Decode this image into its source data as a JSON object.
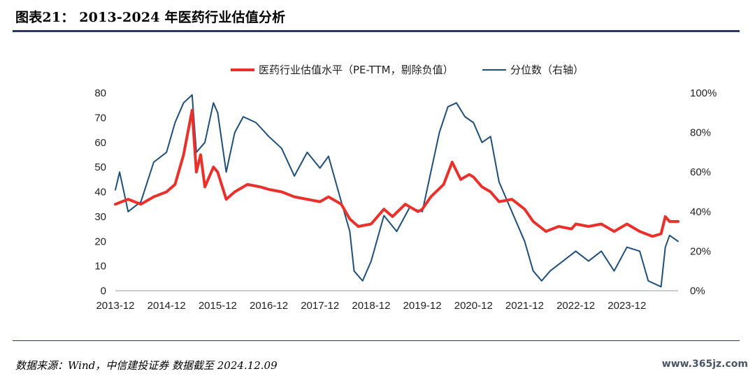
{
  "header": {
    "title": "图表21： 2013-2024 年医药行业估值分析"
  },
  "footer": {
    "source": "数据来源：Wind，中信建投证券  数据截至 2024.12.09",
    "watermark": "www.365jz.com"
  },
  "chart_data": {
    "type": "line",
    "title": "",
    "x_labels": [
      "2013-12",
      "2014-12",
      "2015-12",
      "2016-12",
      "2017-12",
      "2018-12",
      "2019-12",
      "2020-12",
      "2021-12",
      "2022-12",
      "2023-12"
    ],
    "x_range": [
      "2013-12",
      "2024-12"
    ],
    "y_left": {
      "min": 0,
      "max": 80,
      "ticks": [
        "0",
        "10",
        "20",
        "30",
        "40",
        "50",
        "60",
        "70",
        "80"
      ]
    },
    "y_right": {
      "min": 0,
      "max": 1,
      "ticks": [
        "0%",
        "20%",
        "40%",
        "60%",
        "80%",
        "100%"
      ]
    },
    "legend_position": "top",
    "series": [
      {
        "name": "医药行业估值水平（PE-TTM，剔除负值）",
        "axis": "left",
        "color": "#e8312a",
        "points": [
          [
            "2013-12",
            35
          ],
          [
            "2014-03",
            37
          ],
          [
            "2014-06",
            35
          ],
          [
            "2014-09",
            38
          ],
          [
            "2014-12",
            40
          ],
          [
            "2015-02",
            43
          ],
          [
            "2015-04",
            55
          ],
          [
            "2015-06",
            73
          ],
          [
            "2015-07",
            48
          ],
          [
            "2015-08",
            55
          ],
          [
            "2015-09",
            42
          ],
          [
            "2015-11",
            50
          ],
          [
            "2015-12",
            48
          ],
          [
            "2016-02",
            37
          ],
          [
            "2016-04",
            40
          ],
          [
            "2016-07",
            43
          ],
          [
            "2016-10",
            42
          ],
          [
            "2016-12",
            41
          ],
          [
            "2017-03",
            40
          ],
          [
            "2017-06",
            38
          ],
          [
            "2017-09",
            37
          ],
          [
            "2017-12",
            36
          ],
          [
            "2018-02",
            38
          ],
          [
            "2018-05",
            35
          ],
          [
            "2018-07",
            29
          ],
          [
            "2018-09",
            26
          ],
          [
            "2018-12",
            27
          ],
          [
            "2019-03",
            33
          ],
          [
            "2019-05",
            30
          ],
          [
            "2019-08",
            35
          ],
          [
            "2019-11",
            32
          ],
          [
            "2019-12",
            33
          ],
          [
            "2020-02",
            38
          ],
          [
            "2020-05",
            43
          ],
          [
            "2020-07",
            52
          ],
          [
            "2020-09",
            45
          ],
          [
            "2020-11",
            47
          ],
          [
            "2020-12",
            46
          ],
          [
            "2021-02",
            42
          ],
          [
            "2021-04",
            40
          ],
          [
            "2021-06",
            36
          ],
          [
            "2021-09",
            37
          ],
          [
            "2021-12",
            33
          ],
          [
            "2022-02",
            28
          ],
          [
            "2022-05",
            24
          ],
          [
            "2022-08",
            26
          ],
          [
            "2022-11",
            25
          ],
          [
            "2022-12",
            27
          ],
          [
            "2023-03",
            26
          ],
          [
            "2023-06",
            27
          ],
          [
            "2023-09",
            24
          ],
          [
            "2023-12",
            27
          ],
          [
            "2024-03",
            24
          ],
          [
            "2024-06",
            22
          ],
          [
            "2024-08",
            23
          ],
          [
            "2024-09",
            30
          ],
          [
            "2024-10",
            28
          ],
          [
            "2024-12",
            28
          ]
        ]
      },
      {
        "name": "分位数（右轴）",
        "axis": "right",
        "color": "#1f4e79",
        "points": [
          [
            "2013-12",
            0.51
          ],
          [
            "2014-01",
            0.6
          ],
          [
            "2014-03",
            0.4
          ],
          [
            "2014-06",
            0.45
          ],
          [
            "2014-09",
            0.65
          ],
          [
            "2014-12",
            0.7
          ],
          [
            "2015-02",
            0.85
          ],
          [
            "2015-04",
            0.95
          ],
          [
            "2015-06",
            0.99
          ],
          [
            "2015-07",
            0.7
          ],
          [
            "2015-09",
            0.75
          ],
          [
            "2015-11",
            0.95
          ],
          [
            "2015-12",
            0.9
          ],
          [
            "2016-02",
            0.6
          ],
          [
            "2016-04",
            0.8
          ],
          [
            "2016-06",
            0.88
          ],
          [
            "2016-09",
            0.85
          ],
          [
            "2016-12",
            0.78
          ],
          [
            "2017-03",
            0.72
          ],
          [
            "2017-06",
            0.58
          ],
          [
            "2017-09",
            0.7
          ],
          [
            "2017-12",
            0.62
          ],
          [
            "2018-02",
            0.68
          ],
          [
            "2018-05",
            0.45
          ],
          [
            "2018-07",
            0.3
          ],
          [
            "2018-08",
            0.1
          ],
          [
            "2018-10",
            0.05
          ],
          [
            "2018-12",
            0.15
          ],
          [
            "2019-03",
            0.38
          ],
          [
            "2019-06",
            0.3
          ],
          [
            "2019-09",
            0.42
          ],
          [
            "2019-12",
            0.4
          ],
          [
            "2020-02",
            0.6
          ],
          [
            "2020-04",
            0.8
          ],
          [
            "2020-06",
            0.93
          ],
          [
            "2020-08",
            0.95
          ],
          [
            "2020-10",
            0.88
          ],
          [
            "2020-12",
            0.85
          ],
          [
            "2021-02",
            0.75
          ],
          [
            "2021-04",
            0.78
          ],
          [
            "2021-06",
            0.55
          ],
          [
            "2021-09",
            0.4
          ],
          [
            "2021-12",
            0.25
          ],
          [
            "2022-02",
            0.1
          ],
          [
            "2022-04",
            0.05
          ],
          [
            "2022-06",
            0.1
          ],
          [
            "2022-09",
            0.15
          ],
          [
            "2022-12",
            0.2
          ],
          [
            "2023-03",
            0.15
          ],
          [
            "2023-06",
            0.2
          ],
          [
            "2023-09",
            0.1
          ],
          [
            "2023-12",
            0.22
          ],
          [
            "2024-03",
            0.2
          ],
          [
            "2024-05",
            0.05
          ],
          [
            "2024-08",
            0.02
          ],
          [
            "2024-09",
            0.22
          ],
          [
            "2024-10",
            0.28
          ],
          [
            "2024-12",
            0.25
          ]
        ]
      }
    ]
  }
}
